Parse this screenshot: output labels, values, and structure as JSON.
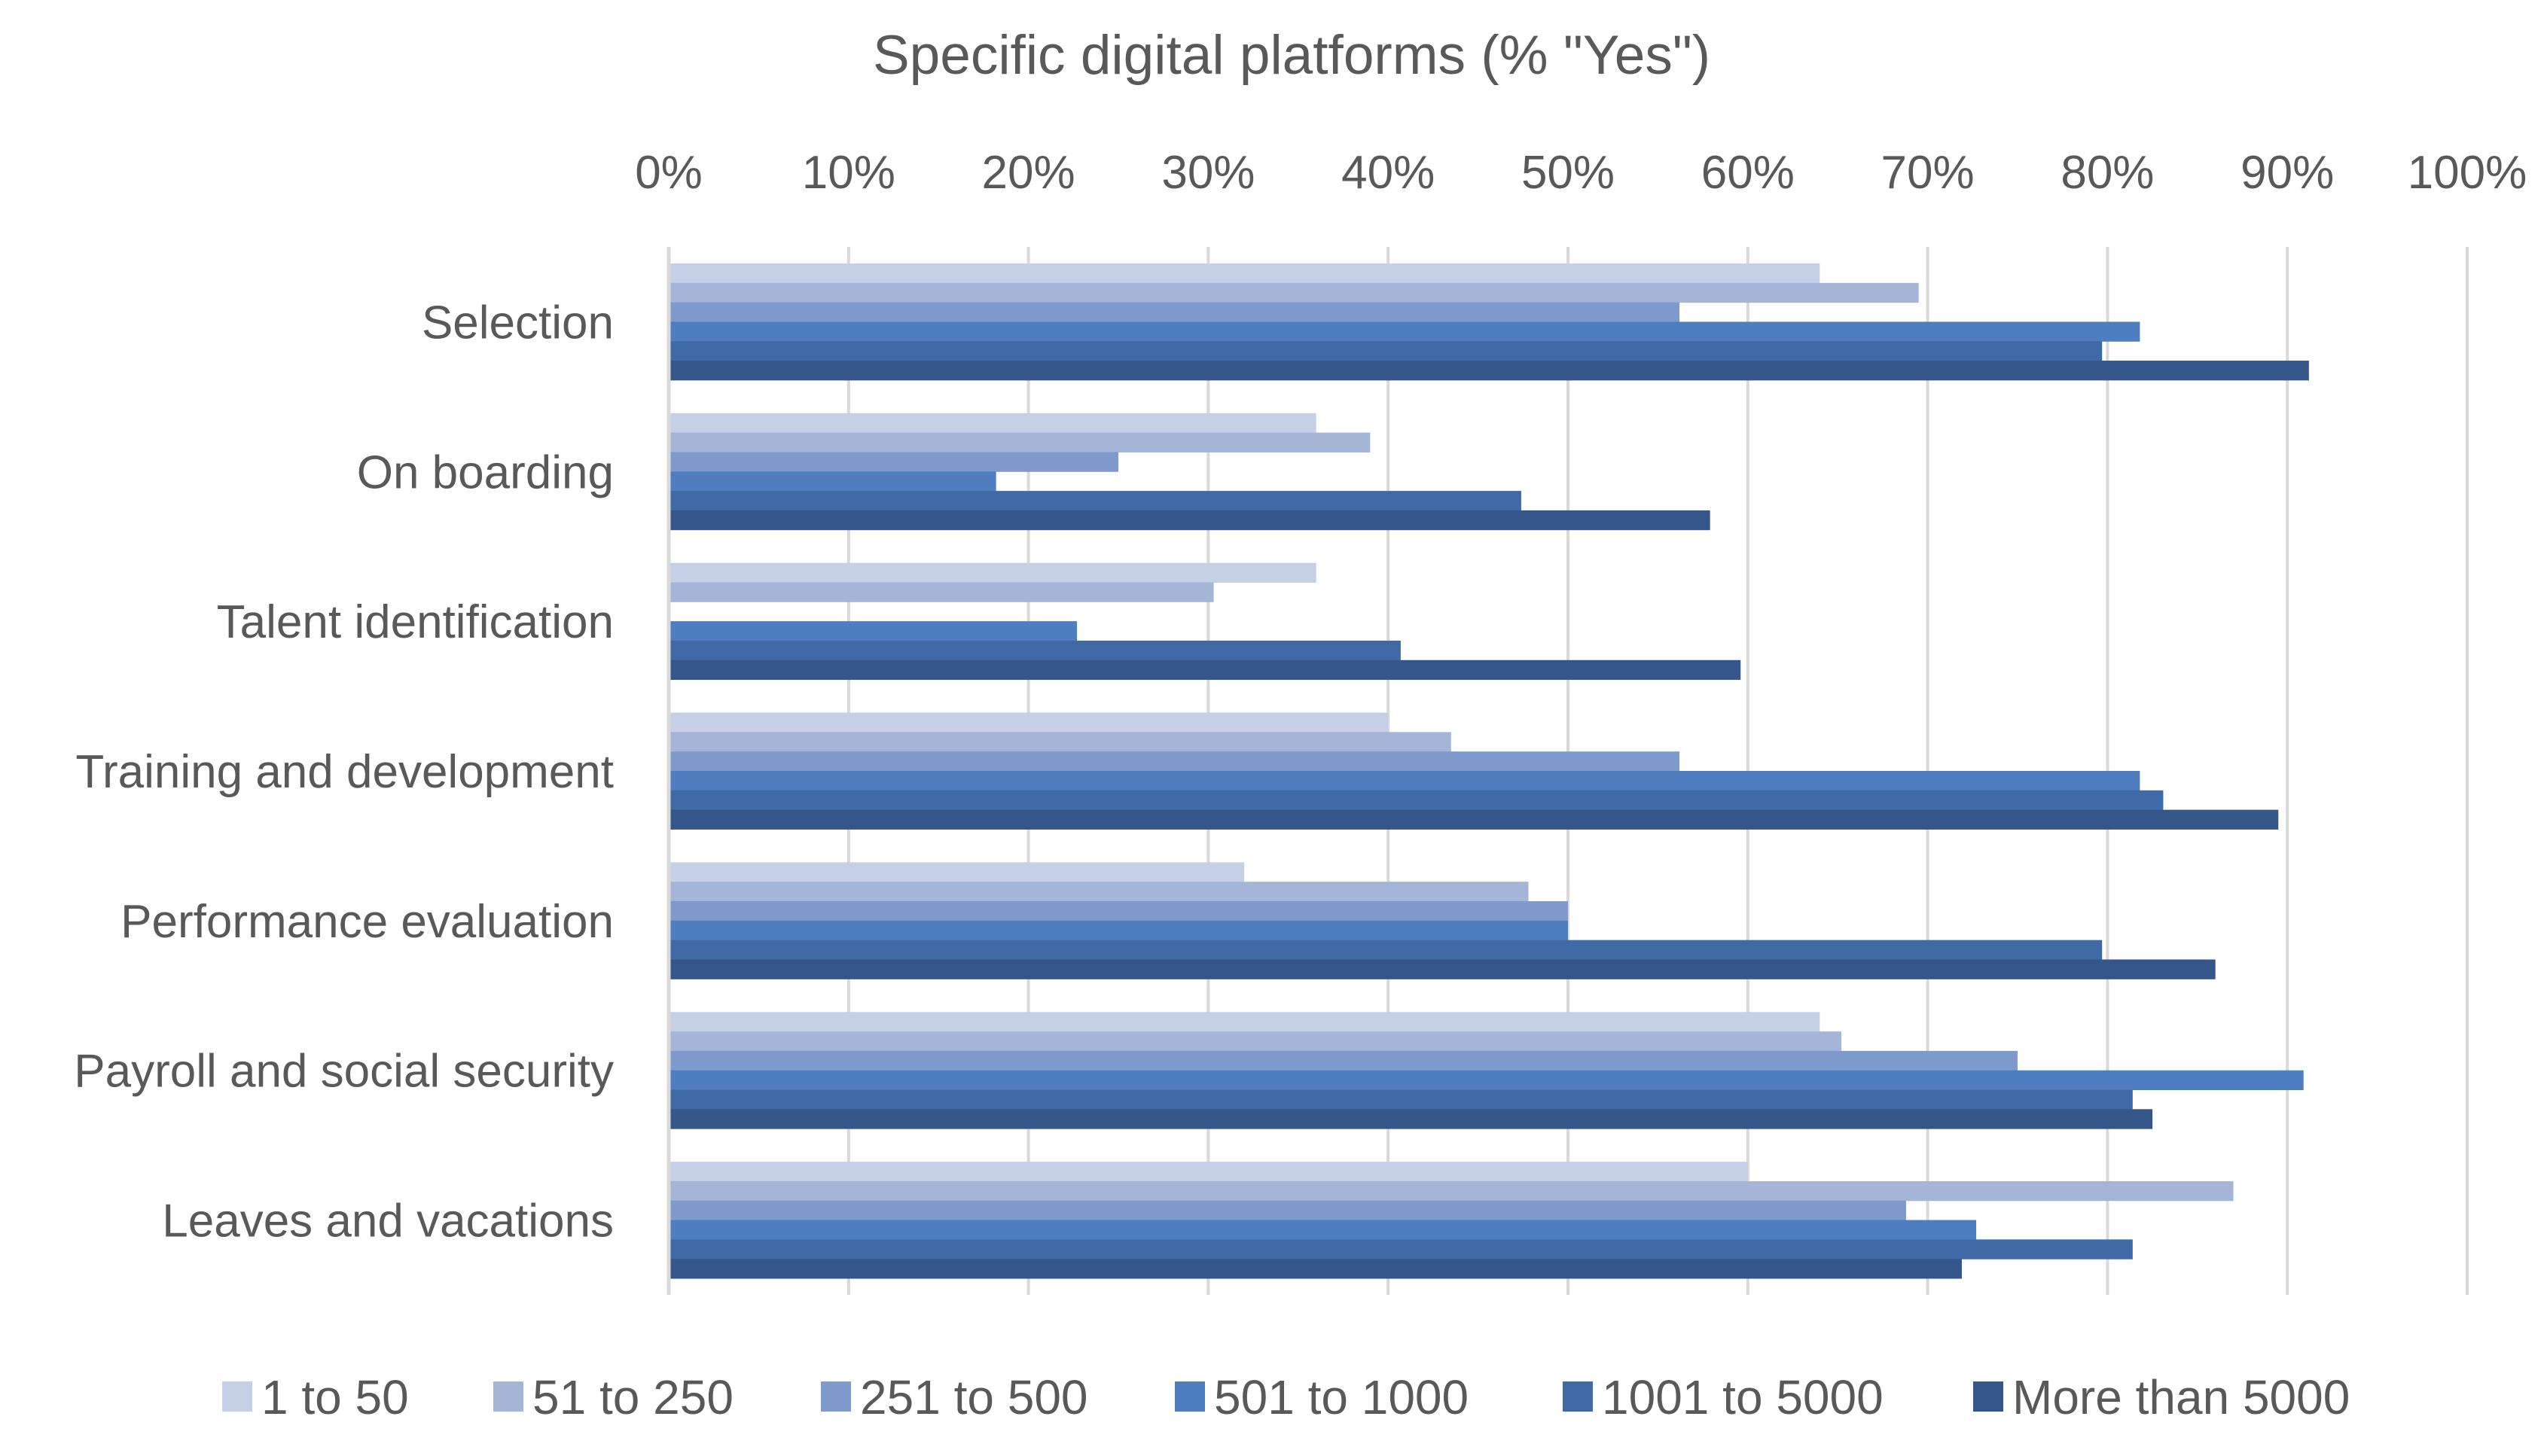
{
  "chart_data": {
    "type": "bar",
    "orientation": "horizontal",
    "title": "Specific digital platforms (% \"Yes\")",
    "xlabel": "",
    "ylabel": "",
    "xlim": [
      0,
      100
    ],
    "x_ticks": [
      "0%",
      "10%",
      "20%",
      "30%",
      "40%",
      "50%",
      "60%",
      "70%",
      "80%",
      "90%",
      "100%"
    ],
    "x_tick_values": [
      0,
      10,
      20,
      30,
      40,
      50,
      60,
      70,
      80,
      90,
      100
    ],
    "x_axis_position": "top",
    "grid": true,
    "legend_position": "bottom",
    "categories": [
      "Selection",
      "On boarding",
      "Talent identification",
      "Training and development",
      "Performance evaluation",
      "Payroll and social security",
      "Leaves and vacations"
    ],
    "series": [
      {
        "name": "1 to 50",
        "color": "#c5cfe5",
        "values": [
          64,
          36,
          36,
          40,
          32,
          64,
          60
        ]
      },
      {
        "name": "51 to 250",
        "color": "#a4b5d8",
        "values": [
          69.5,
          39,
          30.3,
          43.5,
          47.8,
          65.2,
          87
        ]
      },
      {
        "name": "251 to 500",
        "color": "#7f9bcd",
        "values": [
          56.2,
          25,
          0,
          56.2,
          50,
          75,
          68.8
        ]
      },
      {
        "name": "501 to 1000",
        "color": "#4e7dc0",
        "values": [
          81.8,
          18.2,
          22.7,
          81.8,
          50,
          90.9,
          72.7
        ]
      },
      {
        "name": "1001 to 5000",
        "color": "#3f6aa5",
        "values": [
          79.7,
          47.4,
          40.7,
          83.1,
          79.7,
          81.4,
          81.4
        ]
      },
      {
        "name": "More than 5000",
        "color": "#34568b",
        "values": [
          91.2,
          57.9,
          59.6,
          89.5,
          86,
          82.5,
          71.9
        ]
      }
    ]
  }
}
